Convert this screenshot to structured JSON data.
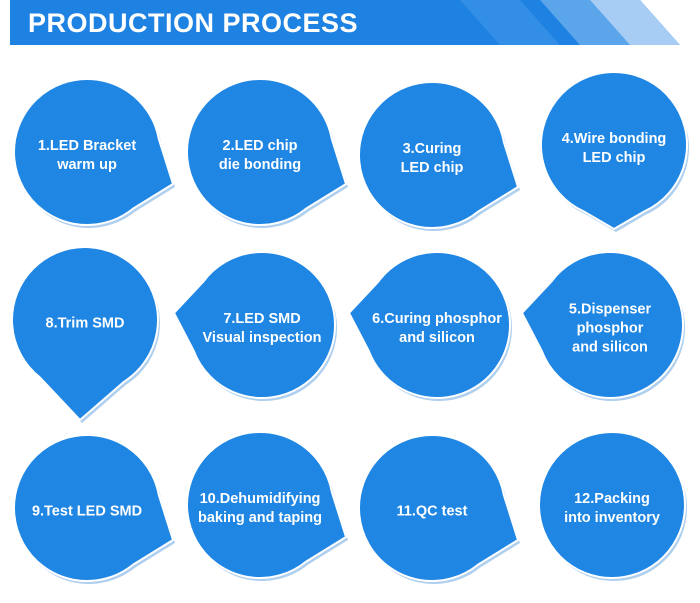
{
  "header": {
    "title": "PRODUCTION PROCESS",
    "color": "#1e82e2"
  },
  "colors": {
    "bubble": "#1f86e3",
    "rim": "#ffffff",
    "shade": "#1976d2"
  },
  "steps": [
    {
      "label": "1.LED Bracket\nwarm up",
      "pointer": "right"
    },
    {
      "label": "2.LED chip\ndie bonding",
      "pointer": "right"
    },
    {
      "label": "3.Curing\nLED chip",
      "pointer": "right"
    },
    {
      "label": "4.Wire bonding\nLED chip",
      "pointer": "down"
    },
    {
      "label": "5.Dispenser\nphosphor\nand silicon",
      "pointer": "left"
    },
    {
      "label": "6.Curing phosphor\nand silicon",
      "pointer": "left"
    },
    {
      "label": "7.LED SMD\nVisual inspection",
      "pointer": "left"
    },
    {
      "label": "8.Trim SMD",
      "pointer": "down"
    },
    {
      "label": "9.Test LED SMD",
      "pointer": "right"
    },
    {
      "label": "10.Dehumidifying\nbaking and taping",
      "pointer": "right"
    },
    {
      "label": "11.QC test",
      "pointer": "right"
    },
    {
      "label": "12.Packing\ninto inventory",
      "pointer": "none"
    }
  ]
}
